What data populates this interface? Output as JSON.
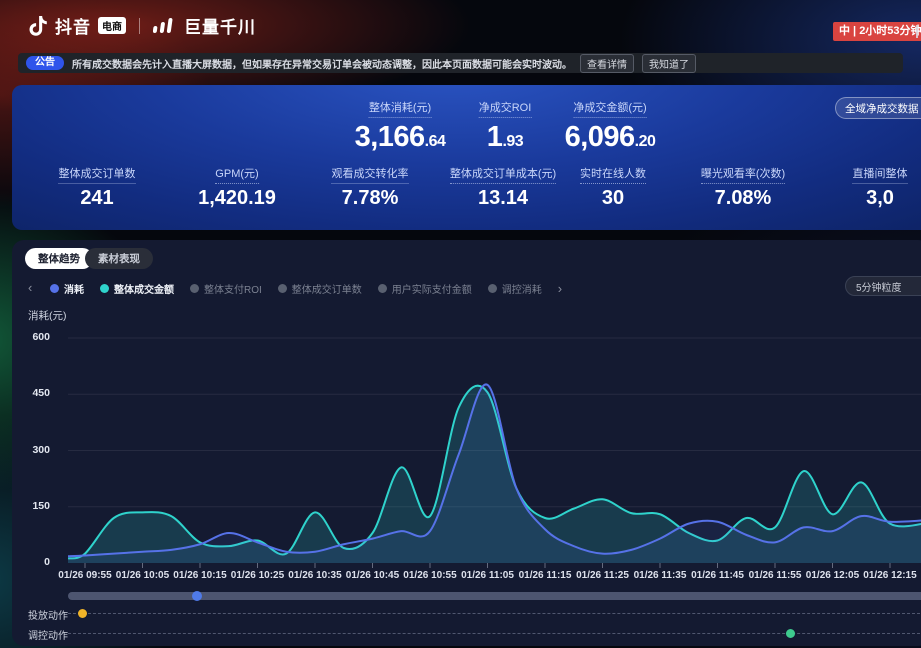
{
  "header": {
    "douyin": "抖音",
    "ecom_badge": "电商",
    "qianchuan": "巨量千川",
    "live_badge": "中 | 2小时53分钟"
  },
  "notice": {
    "tag": "公告",
    "text": "所有成交数据会先计入直播大屏数据，但如果存在异常交易订单会被动态调整，因此本页面数据可能会实时波动。",
    "detail_button": "查看详情",
    "ack_button": "我知道了"
  },
  "metrics": {
    "scope_selector": "全域净成交数据",
    "primary": [
      {
        "key": "overall-consume",
        "label": "整体消耗(元)",
        "value_main": "3,166",
        "value_dec": ".64"
      },
      {
        "key": "net-roi",
        "label": "净成交ROI",
        "value_main": "1",
        "value_dec": ".93"
      },
      {
        "key": "net-gmv",
        "label": "净成交金额(元)",
        "value_main": "6,096",
        "value_dec": ".20"
      }
    ],
    "secondary": [
      {
        "key": "order-count",
        "label": "整体成交订单数",
        "value": "241"
      },
      {
        "key": "gpm",
        "label": "GPM(元)",
        "value": "1,420.19"
      },
      {
        "key": "view-conversion-rate",
        "label": "观看成交转化率",
        "value": "7.78%"
      },
      {
        "key": "order-cost",
        "label": "整体成交订单成本(元)",
        "value": "13.14"
      },
      {
        "key": "online-users",
        "label": "实时在线人数",
        "value": "30"
      },
      {
        "key": "exposure-view-rate",
        "label": "曝光观看率(次数)",
        "value": "7.08%"
      },
      {
        "key": "live-overall",
        "label": "直播间整体",
        "value": "3,0"
      }
    ]
  },
  "tabs": [
    {
      "label": "整体趋势"
    },
    {
      "label": "素材表现"
    }
  ],
  "legend_items": [
    {
      "key": "consume",
      "label": "消耗",
      "color": "#5672e8",
      "selected": true
    },
    {
      "key": "gmv",
      "label": "整体成交金额",
      "color": "#2fd3cc",
      "selected": true
    },
    {
      "key": "pay-roi",
      "label": "整体支付ROI",
      "color": "#596070",
      "selected": false
    },
    {
      "key": "order-count",
      "label": "整体成交订单数",
      "color": "#596070",
      "selected": false
    },
    {
      "key": "user-pay-amount",
      "label": "用户实际支付金额",
      "color": "#596070",
      "selected": false
    },
    {
      "key": "control-consume",
      "label": "调控消耗",
      "color": "#596070",
      "selected": false
    }
  ],
  "chart": {
    "granularity": "5分钟粒度",
    "prev_arrow": "‹",
    "next_arrow": "›"
  },
  "chart_data": {
    "type": "area",
    "title": "整体趋势",
    "xlabel": "",
    "ylabel": "消耗(元)",
    "ylim": [
      0,
      600
    ],
    "yticks": [
      0,
      150,
      300,
      450,
      600
    ],
    "grid": true,
    "legend_position": "top",
    "x_tick_every": 2,
    "categories": [
      "01/26 09:55",
      "01/26 10:00",
      "01/26 10:05",
      "01/26 10:10",
      "01/26 10:15",
      "01/26 10:20",
      "01/26 10:25",
      "01/26 10:30",
      "01/26 10:35",
      "01/26 10:40",
      "01/26 10:45",
      "01/26 10:50",
      "01/26 10:55",
      "01/26 11:00",
      "01/26 11:05",
      "01/26 11:10",
      "01/26 11:15",
      "01/26 11:20",
      "01/26 11:25",
      "01/26 11:30",
      "01/26 11:35",
      "01/26 11:40",
      "01/26 11:45",
      "01/26 11:50",
      "01/26 11:55",
      "01/26 12:00",
      "01/26 12:05",
      "01/26 12:10",
      "01/26 12:15"
    ],
    "series": [
      {
        "name": "消耗",
        "color": "#5672e8",
        "values": [
          20,
          25,
          30,
          35,
          50,
          80,
          55,
          30,
          30,
          50,
          65,
          85,
          85,
          290,
          475,
          200,
          90,
          45,
          25,
          35,
          65,
          105,
          110,
          75,
          55,
          95,
          85,
          125,
          110
        ]
      },
      {
        "name": "整体成交金额",
        "color": "#2fd3cc",
        "values": [
          25,
          120,
          135,
          125,
          55,
          45,
          60,
          25,
          135,
          40,
          80,
          255,
          125,
          415,
          455,
          200,
          120,
          145,
          170,
          133,
          130,
          80,
          60,
          120,
          95,
          245,
          130,
          215,
          105
        ]
      }
    ],
    "edge_start": {
      "消耗": 18,
      "整体成交金额": 12
    },
    "edge_end": {
      "消耗": 115,
      "整体成交金额": 108
    }
  },
  "slider": {
    "handle_pct": 15
  },
  "action_rows": [
    {
      "key": "delivery-action",
      "label": "投放动作",
      "marker_color": "#f0b429",
      "marker_pct": 1.64
    },
    {
      "key": "control-action",
      "label": "调控动作",
      "marker_color": "#3ecb8e",
      "marker_pct": 83.8
    }
  ]
}
